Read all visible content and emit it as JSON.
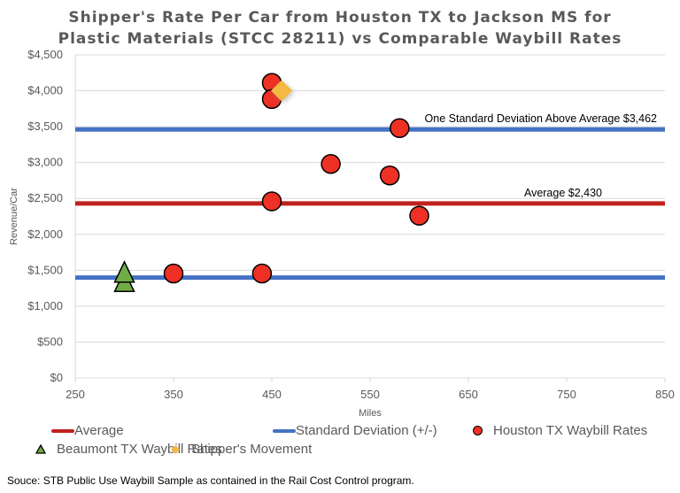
{
  "chart_data": {
    "type": "scatter",
    "title_line1": "Shipper's Rate Per Car from Houston TX to Jackson MS for",
    "title_line2": "Plastic Materials (STCC 28211) vs Comparable Waybill Rates",
    "xlabel": "Miles",
    "ylabel": "Revenue/Car",
    "xlim": [
      250,
      850
    ],
    "ylim": [
      0,
      4500
    ],
    "xticks": [
      250,
      350,
      450,
      550,
      650,
      750,
      850
    ],
    "yticks": [
      0,
      500,
      1000,
      1500,
      2000,
      2500,
      3000,
      3500,
      4000,
      4500
    ],
    "ytick_labels": [
      "$0",
      "$500",
      "$1,000",
      "$1,500",
      "$2,000",
      "$2,500",
      "$3,000",
      "$3,500",
      "$4,000",
      "$4,500"
    ],
    "grid": "horizontal",
    "legend_placement": "bottom",
    "reference_lines": [
      {
        "name": "Average",
        "value": 2430,
        "color": "#C0211F",
        "annotation": "Average $2,430"
      },
      {
        "name": "Standard Deviation (+/-)",
        "value": 3462,
        "color": "#4472C4",
        "annotation": "One Standard Deviation Above Average $3,462"
      },
      {
        "name": "Standard Deviation (+/-)",
        "value": 1398,
        "color": "#4472C4",
        "annotation": ""
      }
    ],
    "series": [
      {
        "name": "Houston TX Waybill Rates",
        "marker": "circle",
        "color": "#EE3124",
        "points": [
          [
            450,
            4110
          ],
          [
            450,
            3885
          ],
          [
            580,
            3480
          ],
          [
            510,
            2980
          ],
          [
            570,
            2820
          ],
          [
            450,
            2460
          ],
          [
            600,
            2260
          ],
          [
            350,
            1455
          ],
          [
            440,
            1455
          ]
        ]
      },
      {
        "name": "Beaumont TX Waybill Rates",
        "marker": "triangle",
        "color": "#70AD47",
        "points": [
          [
            300,
            1340
          ],
          [
            300,
            1470
          ]
        ]
      },
      {
        "name": "Shipper's Movement",
        "marker": "diamond",
        "color": "#F4B942",
        "points": [
          [
            460,
            4000
          ]
        ]
      }
    ],
    "legend": [
      "Average",
      "Standard Deviation (+/-)",
      "Houston TX Waybill Rates",
      "Beaumont TX Waybill Rates",
      "Shipper's Movement"
    ]
  },
  "source": "Souce: STB Public Use Waybill Sample as contained in the Rail Cost Control program."
}
